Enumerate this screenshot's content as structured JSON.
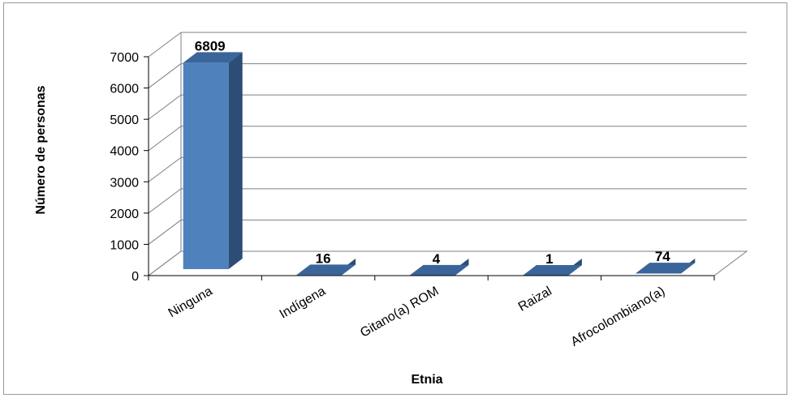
{
  "chart_data": {
    "type": "bar",
    "style": "3d-column",
    "categories": [
      "Ninguna",
      "Indígena",
      "Gitano(a) ROM",
      "Raizal",
      "Afrocolombiano(a)"
    ],
    "values": [
      6809,
      16,
      4,
      1,
      74
    ],
    "data_labels": [
      "6809",
      "16",
      "4",
      "1",
      "74"
    ],
    "xlabel": "Etnia",
    "ylabel": "Número de personas",
    "ylim": [
      0,
      7000
    ],
    "yticks": [
      "0",
      "1000",
      "2000",
      "3000",
      "4000",
      "5000",
      "6000",
      "7000"
    ],
    "grid": true,
    "legend": "none",
    "colors": {
      "bar_front": "#4f81bd",
      "bar_side": "#2c4d75",
      "bar_top": "#3a659b",
      "grid": "#7f7f7f",
      "wall": "#ffffff"
    }
  }
}
